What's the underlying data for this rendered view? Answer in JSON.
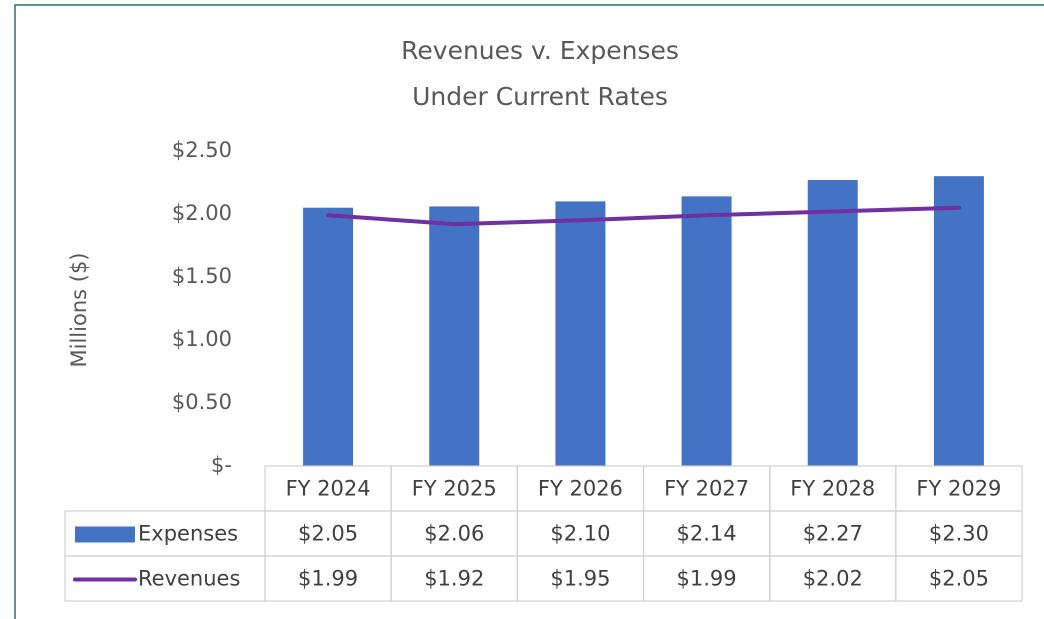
{
  "chart_data": {
    "type": "bar",
    "title": "Revenues v. Expenses",
    "subtitle": "Under Current Rates",
    "y_label": "Millions ($)",
    "categories": [
      "FY 2024",
      "FY 2025",
      "FY 2026",
      "FY 2027",
      "FY 2028",
      "FY 2029"
    ],
    "series": [
      {
        "name": "Expenses",
        "type": "bar",
        "color": "#4472c4",
        "values": [
          2.05,
          2.06,
          2.1,
          2.14,
          2.27,
          2.3
        ],
        "value_labels": [
          "$2.05",
          "$2.06",
          "$2.10",
          "$2.14",
          "$2.27",
          "$2.30"
        ]
      },
      {
        "name": "Revenues",
        "type": "line",
        "color": "#7030a0",
        "values": [
          1.99,
          1.92,
          1.95,
          1.99,
          2.02,
          2.05
        ],
        "value_labels": [
          "$1.99",
          "$1.92",
          "$1.95",
          "$1.99",
          "$2.02",
          "$2.05"
        ]
      }
    ],
    "ylim": [
      0,
      2.5
    ],
    "yticks": [
      {
        "value": 0,
        "label": "$-"
      },
      {
        "value": 0.5,
        "label": "$0.50"
      },
      {
        "value": 1,
        "label": "$1.00"
      },
      {
        "value": 1.5,
        "label": "$1.50"
      },
      {
        "value": 2,
        "label": "$2.00"
      },
      {
        "value": 2.5,
        "label": "$2.50"
      }
    ],
    "grid": false,
    "data_table": true
  }
}
